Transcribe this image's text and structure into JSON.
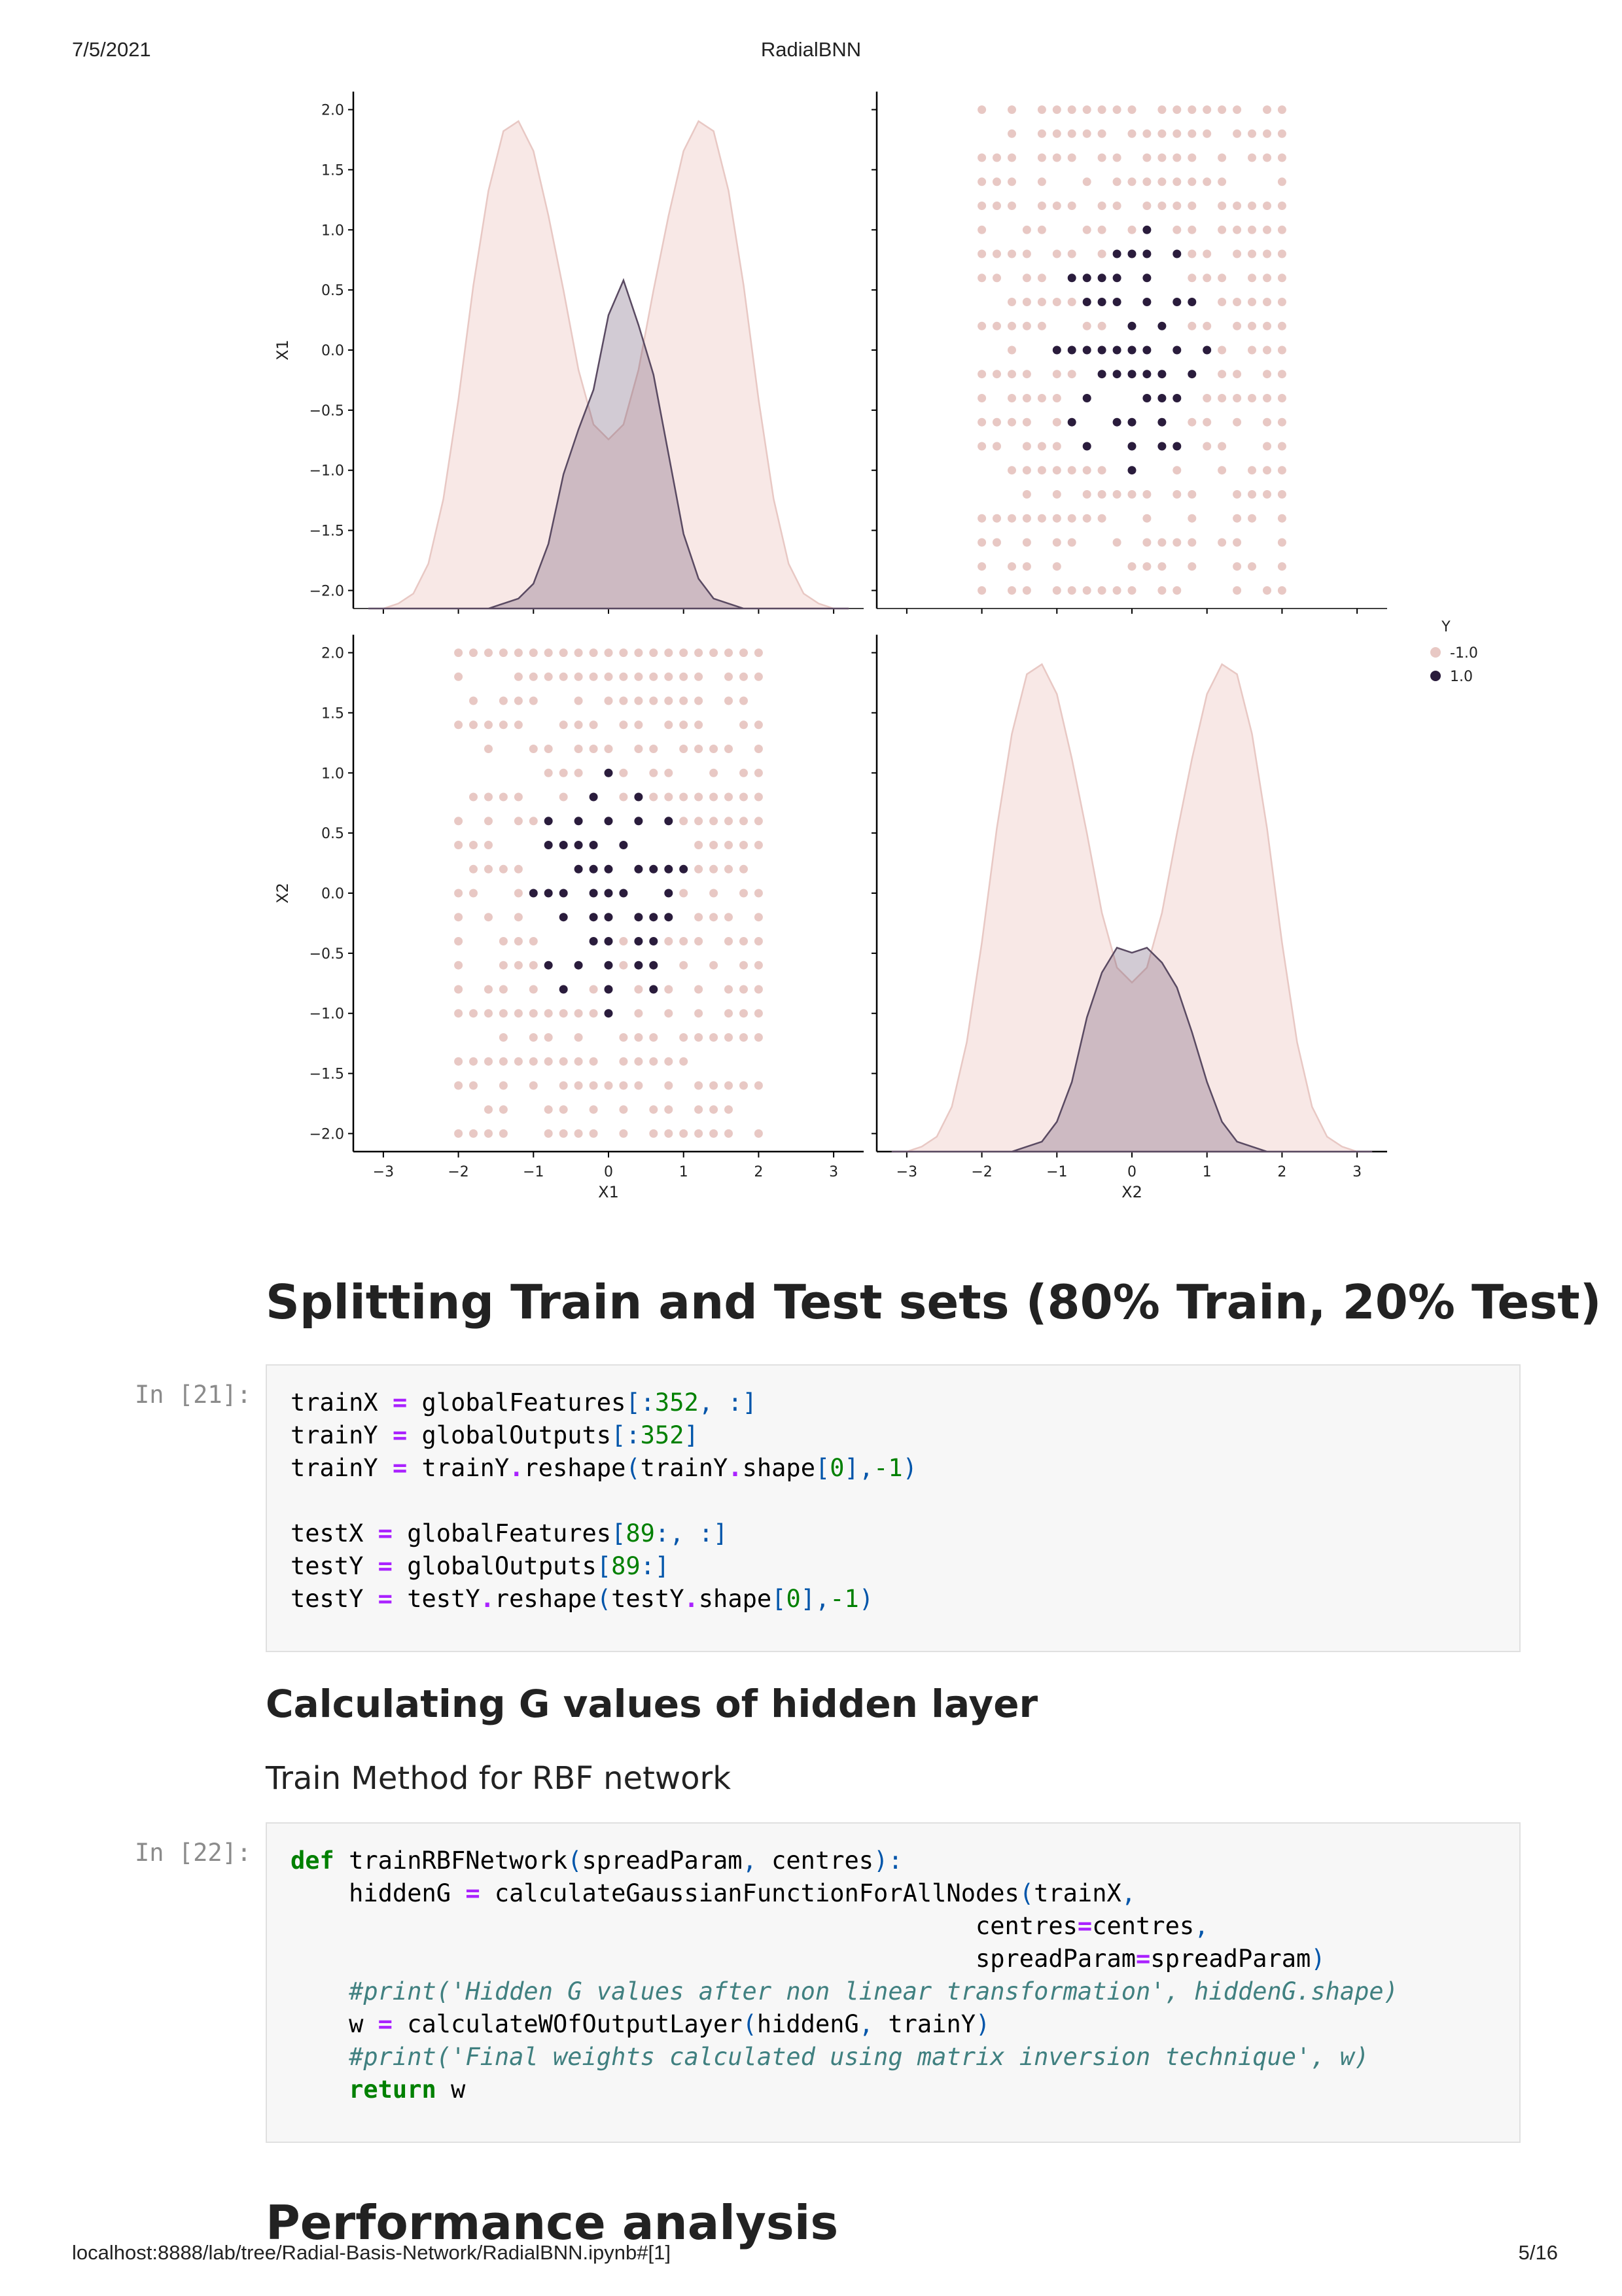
{
  "page_header": {
    "date": "7/5/2021",
    "title": "RadialBNN"
  },
  "page_footer": {
    "url": "localhost:8888/lab/tree/Radial-Basis-Network/RadialBNN.ipynb#[1]",
    "page": "5/16"
  },
  "chart_data": {
    "type": "scatter",
    "kind": "pairplot",
    "variables": [
      "X1",
      "X2"
    ],
    "hue": "Y",
    "legend": {
      "title": "Y",
      "entries": [
        "-1.0",
        "1.0"
      ],
      "placement": "right",
      "colors": [
        "#e8c8c4",
        "#2a1c3c"
      ]
    },
    "y_ticks": [
      "2.0",
      "1.5",
      "1.0",
      "0.5",
      "0.0",
      "−0.5",
      "−1.0",
      "−1.5",
      "−2.0"
    ],
    "x_ticks": [
      "−3",
      "−2",
      "−1",
      "0",
      "1",
      "2",
      "3"
    ],
    "xlim": [
      -3.4,
      3.4
    ],
    "ylim": [
      -2.15,
      2.15
    ],
    "x_grid": [
      -2.0,
      -1.8,
      -1.6,
      -1.4,
      -1.2,
      -1.0,
      -0.8,
      -0.6,
      -0.4,
      -0.2,
      0.0,
      0.2,
      0.4,
      0.6,
      0.8,
      1.0,
      1.2,
      1.4,
      1.6,
      1.8,
      2.0
    ],
    "y_grid": [
      2.0,
      1.8,
      1.6,
      1.4,
      1.2,
      1.0,
      0.8,
      0.6,
      0.4,
      0.2,
      0.0,
      -0.2,
      -0.4,
      -0.6,
      -0.8,
      -1.0,
      -1.2,
      -1.4,
      -1.6,
      -1.8,
      -2.0
    ],
    "rows_x1_x2": [
      "X.X.XXXXXXX.XXXXXX.X",
      "..X.XXXXX.XXXXXX.XXX",
      "XXX.XXX.XX.XXXX.X.XX",
      "XXX.X..X.XXXXXXXX...",
      "XXX.XXX.XX.XXXX.XXXX",
      "X..XX..XX.XO.XX.XXXX",
      "XXXX.XX.XOOO.OXX.XXX",
      "XX.XX.OOOO.O..XXX.XX",
      "..XXXXXOOO.O.OO.XXXX",
      "XXXXX..XX.O.O.XX.XXX",
      "..X..OOOOOOO.O.OX.XX",
      "XXXX.XX.OOOOO.O.XX.X",
      "X.XXXX.O...OOO.XXXXX",
      "XXXX.XO..OO.O.XX.X.X",
      "XX.XXX.O..O.OO.XX..X",
      "..XXXXXXX.O..X..X.XX",
      "...X.X.XXXXX.XX..XXX",
      "XXXXXXXXX..X..X..XX.",
      "XX.X.XX..X.XXXX.XX..",
      "X.XX.X....XXX.X..XX.",
      "X.XX.XXXXXX.XX...X.X"
    ],
    "kde": {
      "x": [
        -3.2,
        -3.0,
        -2.8,
        -2.6,
        -2.4,
        -2.2,
        -2.0,
        -1.8,
        -1.6,
        -1.4,
        -1.2,
        -1.0,
        -0.8,
        -0.6,
        -0.4,
        -0.2,
        0.0,
        0.2,
        0.4,
        0.6,
        0.8,
        1.0,
        1.2,
        1.4,
        1.6,
        1.8,
        2.0,
        2.2,
        2.4,
        2.6,
        2.8,
        3.0,
        3.2
      ],
      "diag_x1": {
        "neg": [
          0.0,
          0.0,
          0.01,
          0.03,
          0.09,
          0.22,
          0.42,
          0.65,
          0.84,
          0.96,
          0.98,
          0.92,
          0.79,
          0.64,
          0.48,
          0.37,
          0.34,
          0.37,
          0.48,
          0.64,
          0.79,
          0.92,
          0.98,
          0.96,
          0.84,
          0.65,
          0.42,
          0.22,
          0.09,
          0.03,
          0.01,
          0.0,
          0.0
        ],
        "pos": [
          0.0,
          0.0,
          0.0,
          0.0,
          0.0,
          0.0,
          0.0,
          0.0,
          0.0,
          0.01,
          0.02,
          0.05,
          0.13,
          0.27,
          0.36,
          0.44,
          0.59,
          0.66,
          0.57,
          0.47,
          0.31,
          0.15,
          0.06,
          0.02,
          0.01,
          0.0,
          0.0,
          0.0,
          0.0,
          0.0,
          0.0,
          0.0,
          0.0
        ]
      },
      "diag_x2": {
        "neg": [
          0.0,
          0.0,
          0.01,
          0.03,
          0.09,
          0.22,
          0.42,
          0.65,
          0.84,
          0.96,
          0.98,
          0.92,
          0.79,
          0.64,
          0.48,
          0.37,
          0.34,
          0.37,
          0.48,
          0.64,
          0.79,
          0.92,
          0.98,
          0.96,
          0.84,
          0.65,
          0.42,
          0.22,
          0.09,
          0.03,
          0.01,
          0.0,
          0.0
        ],
        "pos": [
          0.0,
          0.0,
          0.0,
          0.0,
          0.0,
          0.0,
          0.0,
          0.0,
          0.0,
          0.01,
          0.02,
          0.06,
          0.14,
          0.27,
          0.36,
          0.41,
          0.4,
          0.41,
          0.38,
          0.33,
          0.24,
          0.14,
          0.06,
          0.02,
          0.01,
          0.0,
          0.0,
          0.0,
          0.0,
          0.0,
          0.0,
          0.0,
          0.0
        ]
      }
    },
    "axis_labels": {
      "x": [
        "X1",
        "X2"
      ],
      "y": [
        "X1",
        "X2"
      ]
    }
  },
  "sections": {
    "split_title": "Splitting Train and Test sets (80% Train, 20% Test)",
    "calc_title": "Calculating G values of hidden layer",
    "train_title": "Train Method for RBF network",
    "perf_title": "Performance analysis"
  },
  "cells": [
    {
      "prompt": "In [21]:",
      "lines": [
        [
          [
            "trainX ",
            ""
          ],
          [
            "=",
            "op"
          ],
          [
            " globalFeatures",
            ""
          ],
          [
            "[:",
            "br"
          ],
          [
            "352",
            "num"
          ],
          [
            ", :]",
            "br"
          ]
        ],
        [
          [
            "trainY ",
            ""
          ],
          [
            "=",
            "op"
          ],
          [
            " globalOutputs",
            ""
          ],
          [
            "[:",
            "br"
          ],
          [
            "352",
            "num"
          ],
          [
            "]",
            "br"
          ]
        ],
        [
          [
            "trainY ",
            ""
          ],
          [
            "=",
            "op"
          ],
          [
            " trainY",
            ""
          ],
          [
            ".",
            "op"
          ],
          [
            "reshape",
            ""
          ],
          [
            "(",
            "br"
          ],
          [
            "trainY",
            ""
          ],
          [
            ".",
            "op"
          ],
          [
            "shape",
            ""
          ],
          [
            "[",
            "br"
          ],
          [
            "0",
            "num"
          ],
          [
            "],",
            "br"
          ],
          [
            "-1",
            "num"
          ],
          [
            ")",
            "br"
          ]
        ],
        [],
        [
          [
            "testX ",
            ""
          ],
          [
            "=",
            "op"
          ],
          [
            " globalFeatures",
            ""
          ],
          [
            "[",
            "br"
          ],
          [
            "89",
            "num"
          ],
          [
            ":, :]",
            "br"
          ]
        ],
        [
          [
            "testY ",
            ""
          ],
          [
            "=",
            "op"
          ],
          [
            " globalOutputs",
            ""
          ],
          [
            "[",
            "br"
          ],
          [
            "89",
            "num"
          ],
          [
            ":]",
            "br"
          ]
        ],
        [
          [
            "testY ",
            ""
          ],
          [
            "=",
            "op"
          ],
          [
            " testY",
            ""
          ],
          [
            ".",
            "op"
          ],
          [
            "reshape",
            ""
          ],
          [
            "(",
            "br"
          ],
          [
            "testY",
            ""
          ],
          [
            ".",
            "op"
          ],
          [
            "shape",
            ""
          ],
          [
            "[",
            "br"
          ],
          [
            "0",
            "num"
          ],
          [
            "],",
            "br"
          ],
          [
            "-1",
            "num"
          ],
          [
            ")",
            "br"
          ]
        ]
      ]
    },
    {
      "prompt": "In [22]:",
      "lines": [
        [
          [
            "def",
            "kw"
          ],
          [
            " trainRBFNetwork",
            ""
          ],
          [
            "(",
            "br"
          ],
          [
            "spreadParam",
            ""
          ],
          [
            ",",
            "br"
          ],
          [
            " centres",
            ""
          ],
          [
            "):",
            "br"
          ]
        ],
        [
          [
            "    hiddenG ",
            ""
          ],
          [
            "=",
            "op"
          ],
          [
            " calculateGaussianFunctionForAllNodes",
            ""
          ],
          [
            "(",
            "br"
          ],
          [
            "trainX",
            ""
          ],
          [
            ",",
            "br"
          ]
        ],
        [
          [
            "                                               centres",
            ""
          ],
          [
            "=",
            "op"
          ],
          [
            "centres",
            ""
          ],
          [
            ",",
            "br"
          ]
        ],
        [
          [
            "                                               spreadParam",
            ""
          ],
          [
            "=",
            "op"
          ],
          [
            "spreadParam",
            ""
          ],
          [
            ")",
            "br"
          ]
        ],
        [
          [
            "    ",
            ""
          ],
          [
            "#print('Hidden G values after non linear transformation', hiddenG.shape)",
            "cm"
          ]
        ],
        [
          [
            "    w ",
            ""
          ],
          [
            "=",
            "op"
          ],
          [
            " calculateWOfOutputLayer",
            ""
          ],
          [
            "(",
            "br"
          ],
          [
            "hiddenG",
            ""
          ],
          [
            ",",
            "br"
          ],
          [
            " trainY",
            ""
          ],
          [
            ")",
            "br"
          ]
        ],
        [
          [
            "    ",
            ""
          ],
          [
            "#print('Final weights calculated using matrix inversion technique', w)",
            "cm"
          ]
        ],
        [
          [
            "    ",
            ""
          ],
          [
            "return",
            "kw"
          ],
          [
            " w",
            ""
          ]
        ]
      ]
    }
  ]
}
